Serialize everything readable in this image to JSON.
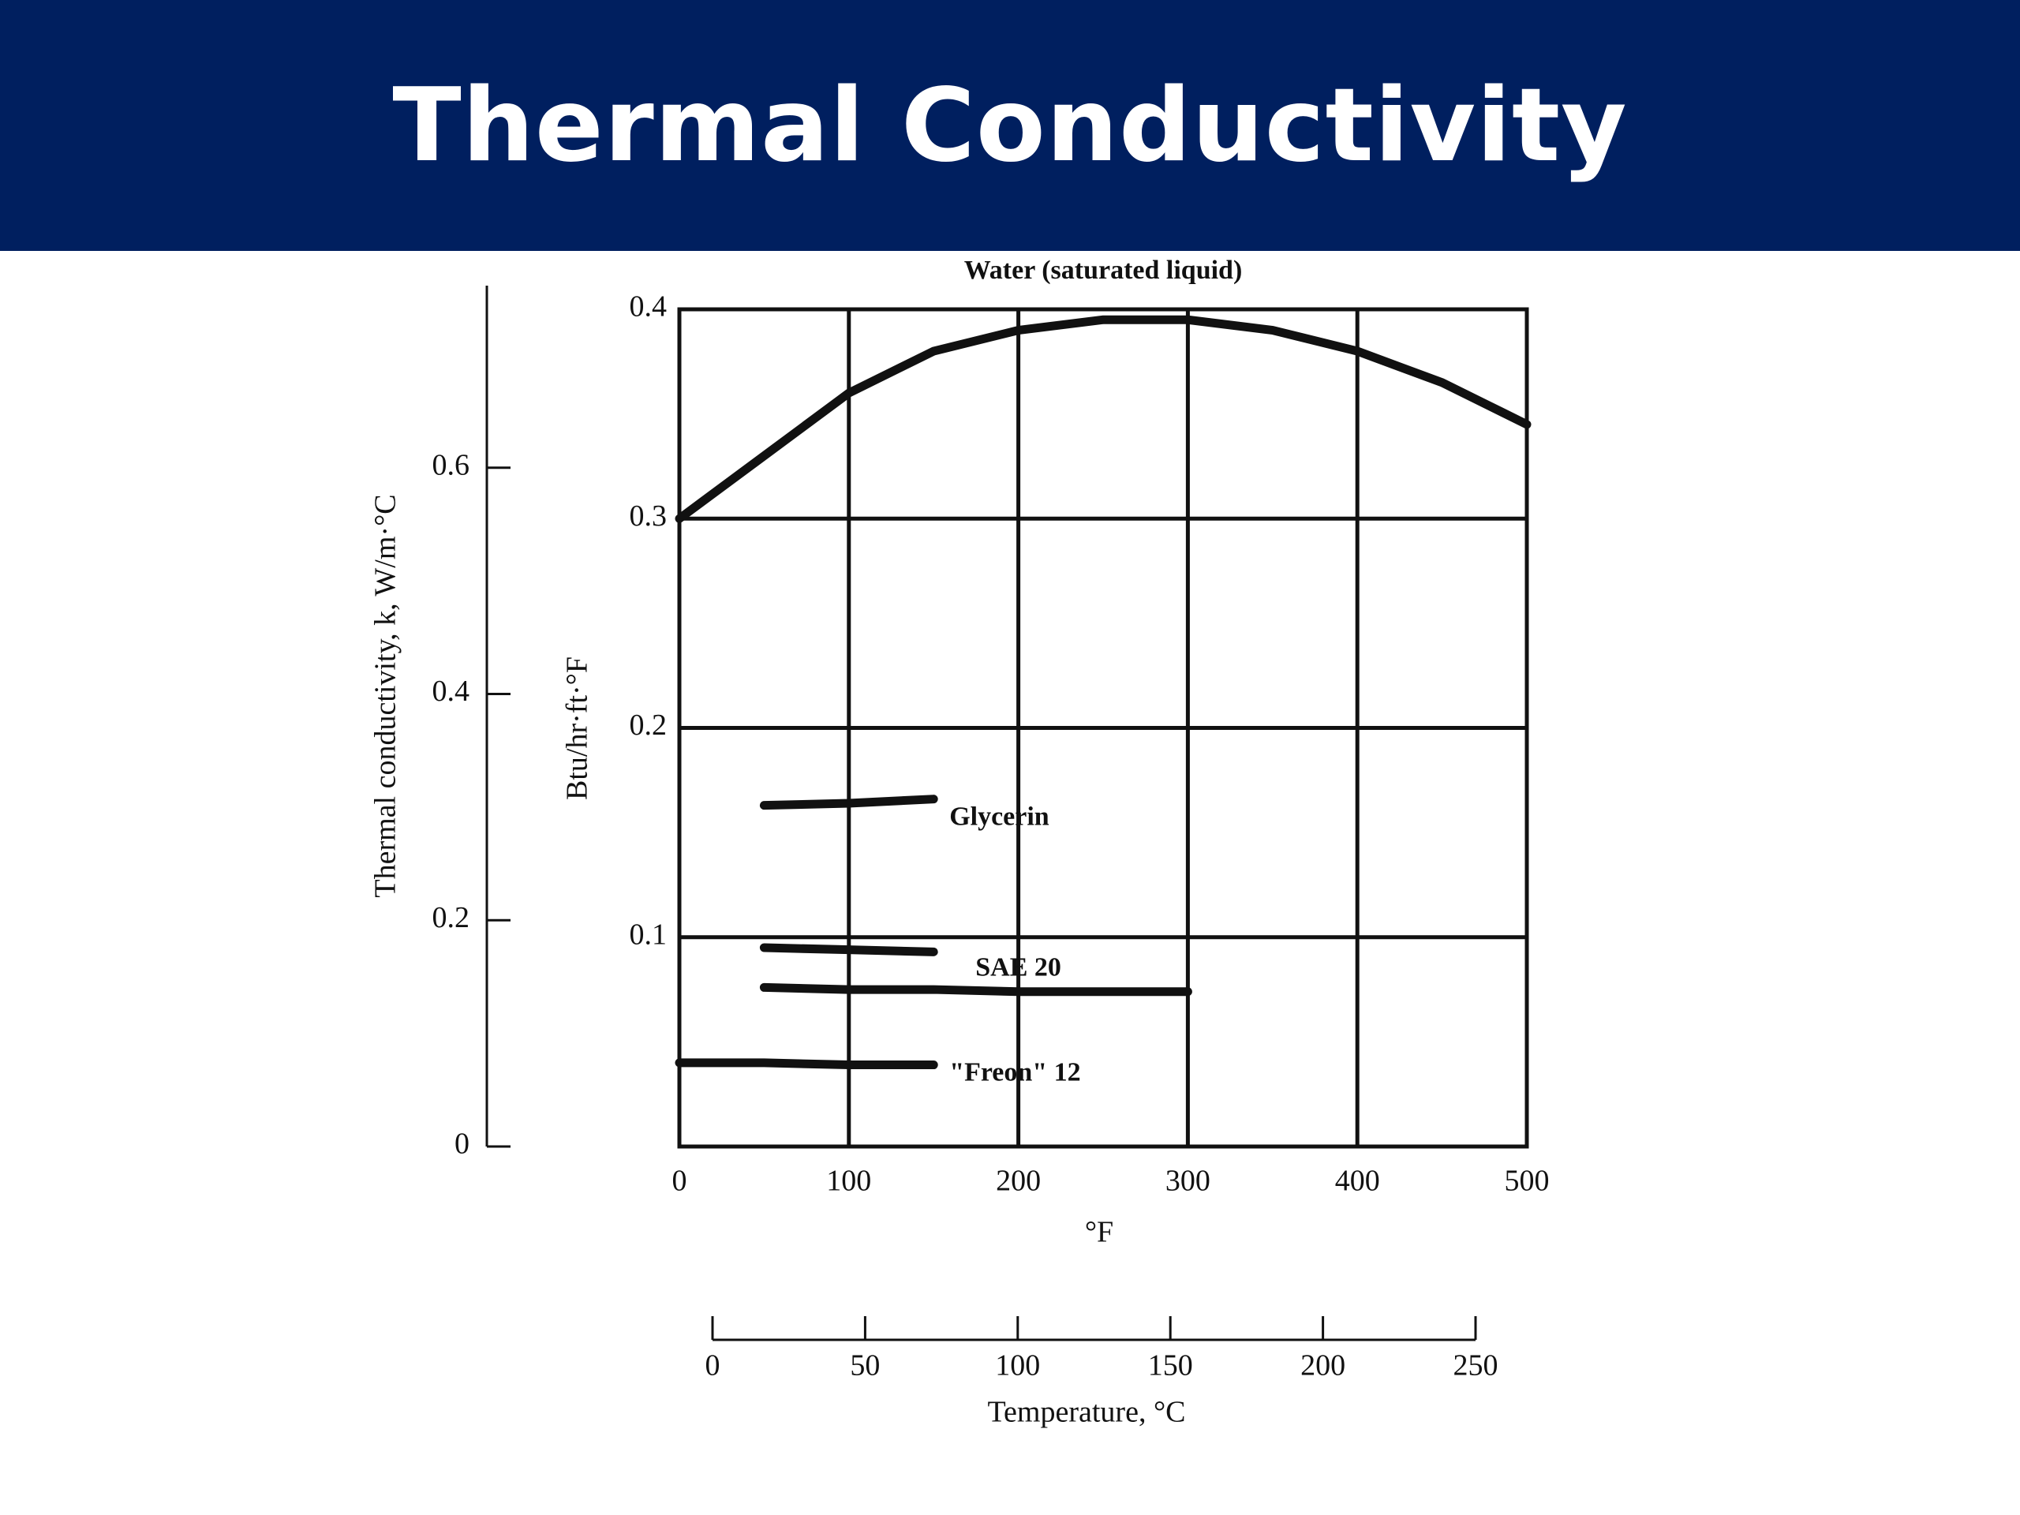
{
  "chart_data": {
    "type": "line",
    "title": "Thermal Conductivity",
    "xlabel": "°F",
    "ylabel": "Btu/hr·ft·°F",
    "y2label": "Thermal conductivity, k, W/m·°C",
    "x2label": "Temperature, °C",
    "x": [
      0,
      50,
      100,
      150,
      200,
      250,
      300,
      350,
      400,
      450,
      500
    ],
    "xlim": [
      0,
      500
    ],
    "xticks": [
      0,
      100,
      200,
      300,
      400,
      500
    ],
    "ylim": [
      0,
      0.4
    ],
    "yticks": [
      0.1,
      0.2,
      0.3,
      0.4
    ],
    "y2lim": [
      0,
      0.74
    ],
    "y2ticks": [
      0,
      0.2,
      0.4,
      0.6
    ],
    "x2lim": [
      0,
      250
    ],
    "x2ticks": [
      0,
      50,
      100,
      150,
      200,
      250
    ],
    "grid": true,
    "series": [
      {
        "name": "Water (saturated liquid)",
        "color": "#111111",
        "values": [
          0.3,
          0.33,
          0.36,
          0.38,
          0.39,
          0.395,
          0.395,
          0.39,
          0.38,
          0.365,
          0.345
        ]
      },
      {
        "name": "Glycerin",
        "color": "#111111",
        "values": [
          null,
          0.163,
          0.164,
          0.166,
          null,
          null,
          null,
          null,
          null,
          null,
          null
        ]
      },
      {
        "color": "#111111",
        "values": [
          null,
          0.095,
          0.094,
          0.093,
          null,
          null,
          null,
          null,
          null,
          null,
          null
        ]
      },
      {
        "name": "SAE 20",
        "color": "#111111",
        "values": [
          null,
          0.076,
          0.075,
          0.075,
          0.074,
          0.074,
          0.074,
          null,
          null,
          null,
          null
        ]
      },
      {
        "name": "\"Freon\" 12",
        "color": "#111111",
        "values": [
          0.04,
          0.04,
          0.039,
          0.039,
          null,
          null,
          null,
          null,
          null,
          null,
          null
        ]
      }
    ]
  }
}
